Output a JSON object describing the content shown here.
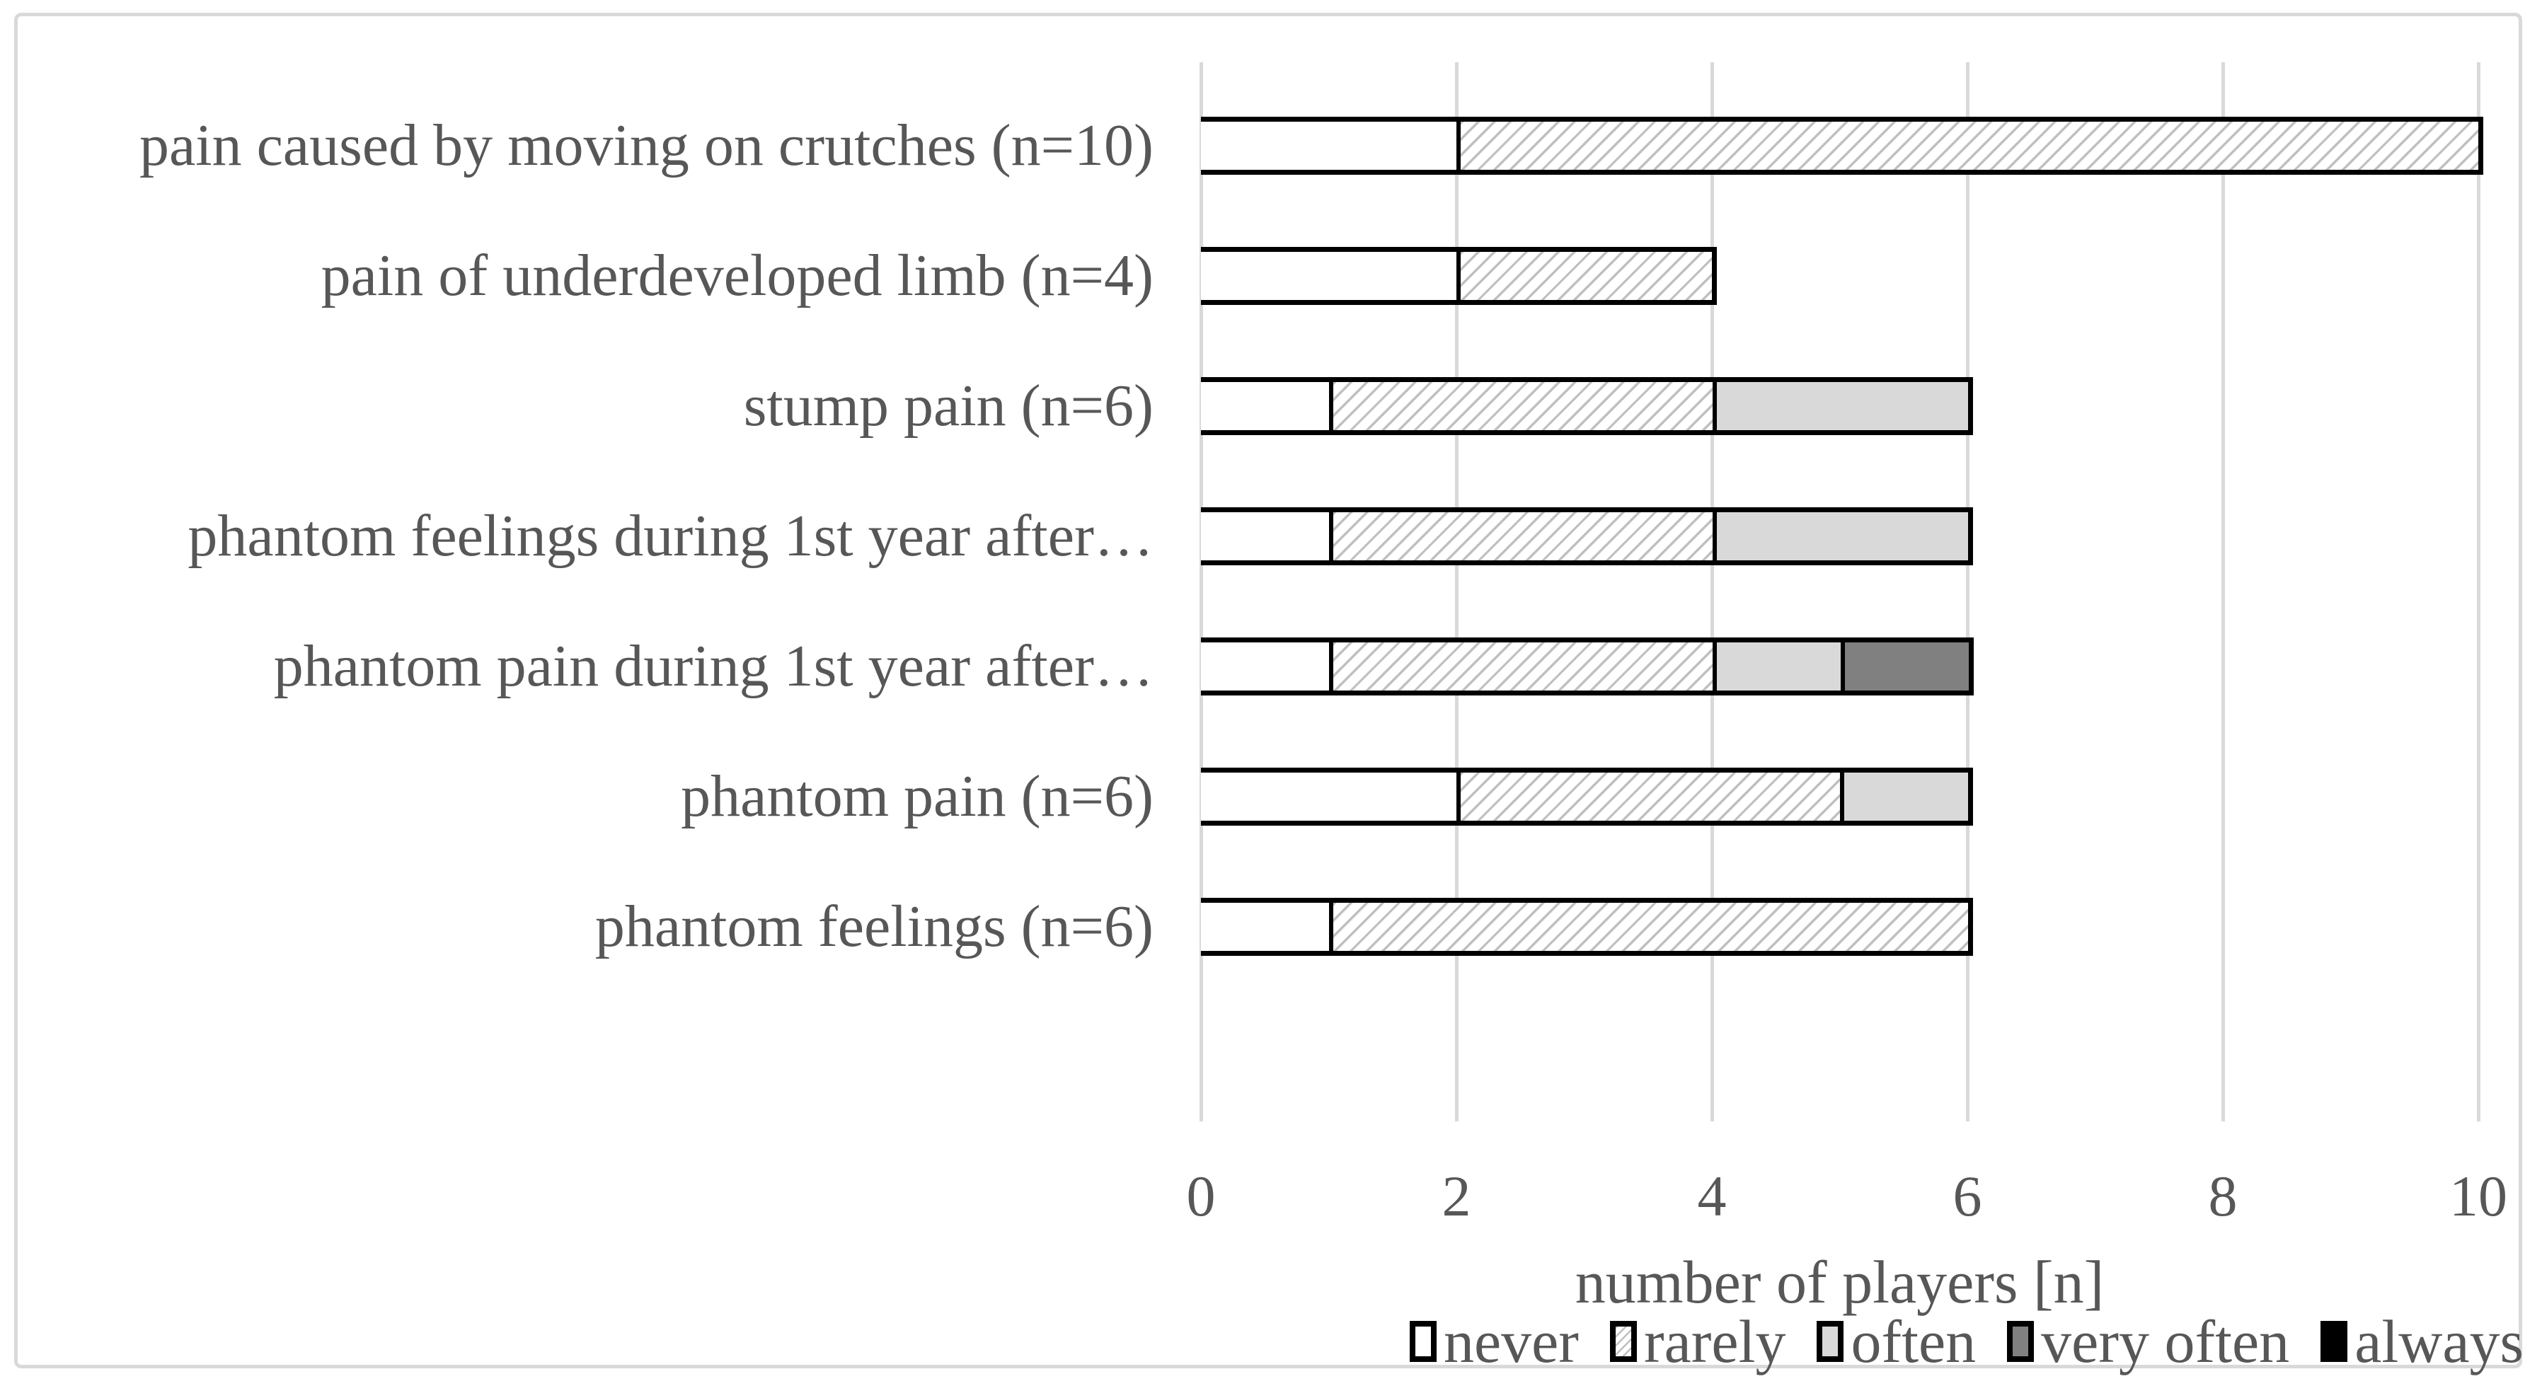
{
  "figure": {
    "background": "#ffffff",
    "border_color": "#d9d9d9",
    "text_color": "#575757",
    "gridline_color": "#d9d9d9",
    "bar_border_color": "#000000"
  },
  "chart_data": {
    "type": "bar",
    "orientation": "horizontal",
    "stacked": true,
    "categories": [
      "pain caused by moving on crutches (n=10)",
      "pain of underdeveloped limb (n=4)",
      "stump pain (n=6)",
      "phantom feelings during 1st year after…",
      "phantom pain during 1st year after…",
      "phantom pain (n=6)",
      "phantom feelings (n=6)"
    ],
    "series": [
      {
        "key": "never",
        "name": "never",
        "fill": "#ffffff",
        "values": [
          2,
          2,
          1,
          1,
          1,
          2,
          1
        ]
      },
      {
        "key": "rarely",
        "name": "rarely",
        "fill": "hatch-diagonal",
        "values": [
          8,
          2,
          3,
          3,
          3,
          3,
          5
        ]
      },
      {
        "key": "often",
        "name": "often",
        "fill": "#d9d9d9",
        "values": [
          0,
          0,
          2,
          2,
          1,
          1,
          0
        ]
      },
      {
        "key": "very_often",
        "name": "very often",
        "fill": "#808080",
        "values": [
          0,
          0,
          0,
          0,
          1,
          0,
          0
        ]
      },
      {
        "key": "always",
        "name": "always",
        "fill": "#000000",
        "values": [
          0,
          0,
          0,
          0,
          0,
          0,
          0
        ]
      }
    ],
    "totals": [
      10,
      4,
      6,
      6,
      6,
      6,
      6
    ],
    "xlabel": "number of players [n]",
    "xlim": [
      0,
      10
    ],
    "xticks": [
      "0",
      "2",
      "4",
      "6",
      "8",
      "10"
    ],
    "grid": "vertical-on",
    "legend_position": "bottom-right"
  },
  "legend": {
    "items": [
      {
        "key": "never",
        "label": "never"
      },
      {
        "key": "rarely",
        "label": "rarely"
      },
      {
        "key": "often",
        "label": "often"
      },
      {
        "key": "very_often",
        "label": "very often"
      },
      {
        "key": "always",
        "label": "always"
      }
    ]
  }
}
